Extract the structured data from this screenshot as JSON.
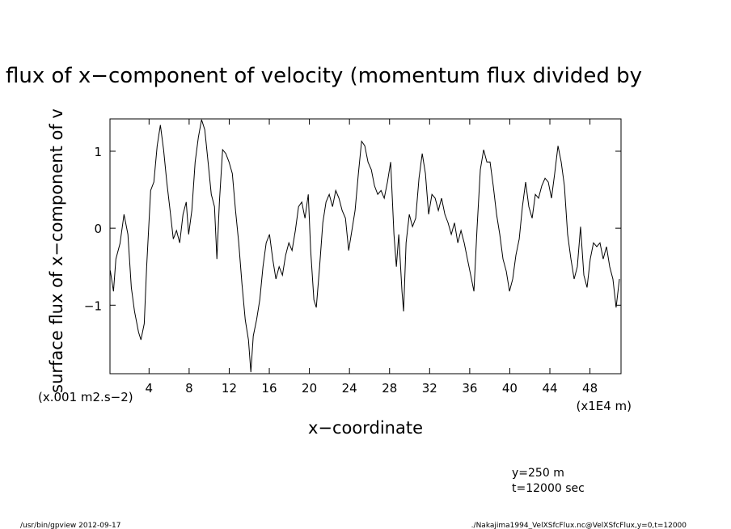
{
  "chart_data": {
    "type": "line",
    "title": "flux of x−component of velocity (momentum flux divided by",
    "y_label": "surface flux of x−component of v",
    "y_unit": "(x.001 m2.s−2)",
    "x_label": "x−coordinate",
    "x_unit": "(x1E4 m)",
    "notes": [
      "y=250 m",
      "t=12000 sec"
    ],
    "footer_left": "/usr/bin/gpview   2012-09-17",
    "footer_right": "./Nakajima1994_VelXSfcFlux.nc@VelXSfcFlux,y=0,t=12000",
    "color": "#000000",
    "xlim": [
      0.1,
      51.1
    ],
    "ylim": [
      -1.89,
      1.42
    ],
    "xticks": [
      4,
      8,
      12,
      16,
      20,
      24,
      28,
      32,
      36,
      40,
      44,
      48
    ],
    "yticks": [
      {
        "value": -1,
        "label": "−1"
      },
      0,
      1
    ],
    "x": [
      0.13,
      0.45,
      0.69,
      1.1,
      1.5,
      1.89,
      2.23,
      2.55,
      2.95,
      3.19,
      3.52,
      3.76,
      4.16,
      4.48,
      4.81,
      5.13,
      5.45,
      5.77,
      6.1,
      6.42,
      6.74,
      7.06,
      7.39,
      7.71,
      7.95,
      8.27,
      8.6,
      8.92,
      9.24,
      9.56,
      9.89,
      10.21,
      10.53,
      10.77,
      11.02,
      11.34,
      11.66,
      11.98,
      12.31,
      12.63,
      12.95,
      13.27,
      13.6,
      13.92,
      14.16,
      14.4,
      14.73,
      15.05,
      15.37,
      15.69,
      16.02,
      16.34,
      16.66,
      16.98,
      17.31,
      17.63,
      17.95,
      18.27,
      18.6,
      18.92,
      19.24,
      19.56,
      19.89,
      20.13,
      20.45,
      20.69,
      21.02,
      21.34,
      21.66,
      21.98,
      22.31,
      22.63,
      22.95,
      23.27,
      23.6,
      23.92,
      24.24,
      24.56,
      24.89,
      25.21,
      25.53,
      25.85,
      26.18,
      26.5,
      26.82,
      27.15,
      27.47,
      27.79,
      28.11,
      28.44,
      28.68,
      28.92,
      29.24,
      29.4,
      29.65,
      29.97,
      30.29,
      30.61,
      30.94,
      31.26,
      31.58,
      31.9,
      32.23,
      32.55,
      32.87,
      33.19,
      33.52,
      33.84,
      34.16,
      34.48,
      34.81,
      35.13,
      35.45,
      35.77,
      36.1,
      36.42,
      36.74,
      37.06,
      37.39,
      37.71,
      38.03,
      38.35,
      38.68,
      39.0,
      39.32,
      39.65,
      39.97,
      40.29,
      40.61,
      40.94,
      41.26,
      41.58,
      41.9,
      42.23,
      42.55,
      42.87,
      43.19,
      43.52,
      43.84,
      44.16,
      44.48,
      44.81,
      45.13,
      45.45,
      45.77,
      46.1,
      46.42,
      46.74,
      47.06,
      47.39,
      47.71,
      48.03,
      48.35,
      48.68,
      49.0,
      49.32,
      49.65,
      49.97,
      50.29,
      50.61,
      50.94
    ],
    "values": [
      -0.55,
      -0.82,
      -0.4,
      -0.2,
      0.18,
      -0.08,
      -0.77,
      -1.08,
      -1.35,
      -1.45,
      -1.24,
      -0.5,
      0.49,
      0.6,
      1.07,
      1.34,
      1.02,
      0.6,
      0.23,
      -0.14,
      -0.03,
      -0.19,
      0.18,
      0.34,
      -0.08,
      0.23,
      0.86,
      1.18,
      1.41,
      1.28,
      0.86,
      0.44,
      0.28,
      -0.4,
      0.34,
      1.02,
      0.97,
      0.86,
      0.71,
      0.23,
      -0.19,
      -0.72,
      -1.19,
      -1.45,
      -1.87,
      -1.4,
      -1.19,
      -0.93,
      -0.5,
      -0.19,
      -0.08,
      -0.4,
      -0.66,
      -0.5,
      -0.61,
      -0.35,
      -0.19,
      -0.29,
      -0.03,
      0.28,
      0.34,
      0.13,
      0.44,
      -0.29,
      -0.93,
      -1.03,
      -0.5,
      0.07,
      0.34,
      0.44,
      0.28,
      0.49,
      0.39,
      0.23,
      0.13,
      -0.29,
      -0.03,
      0.23,
      0.71,
      1.13,
      1.07,
      0.86,
      0.76,
      0.55,
      0.44,
      0.49,
      0.39,
      0.6,
      0.86,
      -0.08,
      -0.5,
      -0.08,
      -0.82,
      -1.08,
      -0.19,
      0.18,
      0.02,
      0.13,
      0.65,
      0.97,
      0.71,
      0.18,
      0.44,
      0.39,
      0.23,
      0.39,
      0.18,
      0.07,
      -0.08,
      0.07,
      -0.19,
      -0.03,
      -0.19,
      -0.4,
      -0.61,
      -0.82,
      0.02,
      0.76,
      1.02,
      0.86,
      0.86,
      0.55,
      0.18,
      -0.08,
      -0.4,
      -0.56,
      -0.82,
      -0.66,
      -0.35,
      -0.14,
      0.28,
      0.6,
      0.28,
      0.13,
      0.44,
      0.39,
      0.55,
      0.65,
      0.6,
      0.39,
      0.71,
      1.07,
      0.86,
      0.55,
      -0.08,
      -0.4,
      -0.66,
      -0.5,
      0.02,
      -0.61,
      -0.77,
      -0.4,
      -0.19,
      -0.24,
      -0.19,
      -0.4,
      -0.24,
      -0.5,
      -0.66,
      -1.03,
      -0.66
    ]
  }
}
